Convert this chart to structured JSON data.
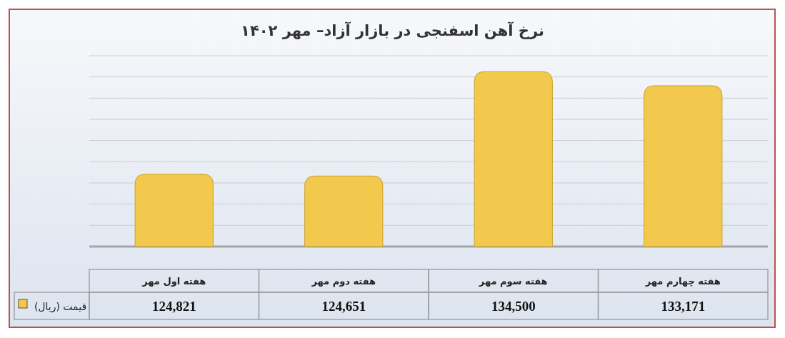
{
  "chart_data": {
    "type": "bar",
    "title": "نرخ آهن اسفنجی در بازار آزاد– مهر ۱۴۰۲",
    "categories": [
      "هفته اول مهر",
      "هفته دوم مهر",
      "هفته سوم مهر",
      "هفته چهارم مهر"
    ],
    "series": [
      {
        "name": "قیمت (ریال)",
        "color": "#f2c94c",
        "values": [
          124821,
          124651,
          134500,
          133171
        ],
        "value_labels": [
          "124,821",
          "124,651",
          "134,500",
          "133,171"
        ]
      }
    ],
    "ylim": [
      118000,
      136000
    ],
    "yticks": [
      {
        "value": 118000,
        "label": null
      },
      {
        "value": 120000,
        "label": null
      },
      {
        "value": 122000,
        "label": null
      },
      {
        "value": 124000,
        "label": null
      },
      {
        "value": 126000,
        "label": null
      },
      {
        "value": 128000,
        "label": null
      },
      {
        "value": 130000,
        "label": null
      },
      {
        "value": 132000,
        "label": null
      },
      {
        "value": 134000,
        "label": null
      },
      {
        "value": 136000,
        "label": null
      }
    ],
    "grid": "y",
    "legend": "bottom left",
    "tick_labels": "x"
  }
}
